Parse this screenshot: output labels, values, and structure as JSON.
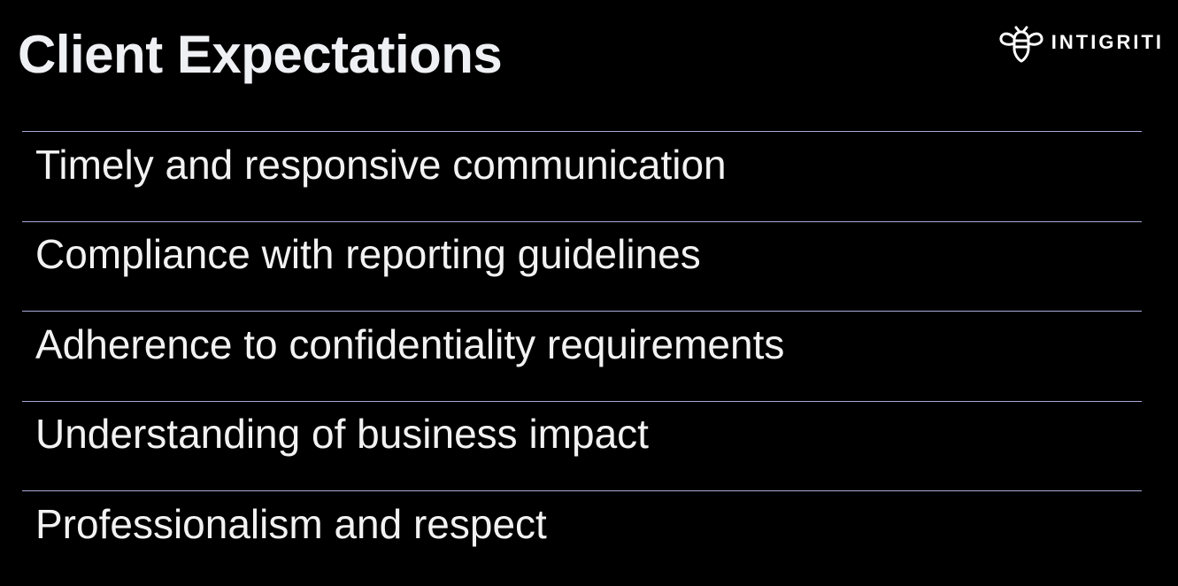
{
  "slide": {
    "title": "Client Expectations",
    "logo": {
      "icon": "bee-icon",
      "text": "INTIGRITI"
    },
    "items": [
      {
        "label": "Timely and responsive communication"
      },
      {
        "label": "Compliance with reporting guidelines"
      },
      {
        "label": "Adherence to confidentiality requirements"
      },
      {
        "label": "Understanding of business impact"
      },
      {
        "label": "Professionalism and respect"
      }
    ]
  },
  "colors": {
    "background": "#000000",
    "text": "#f2f2f2",
    "divider": "#a9a9d8"
  }
}
